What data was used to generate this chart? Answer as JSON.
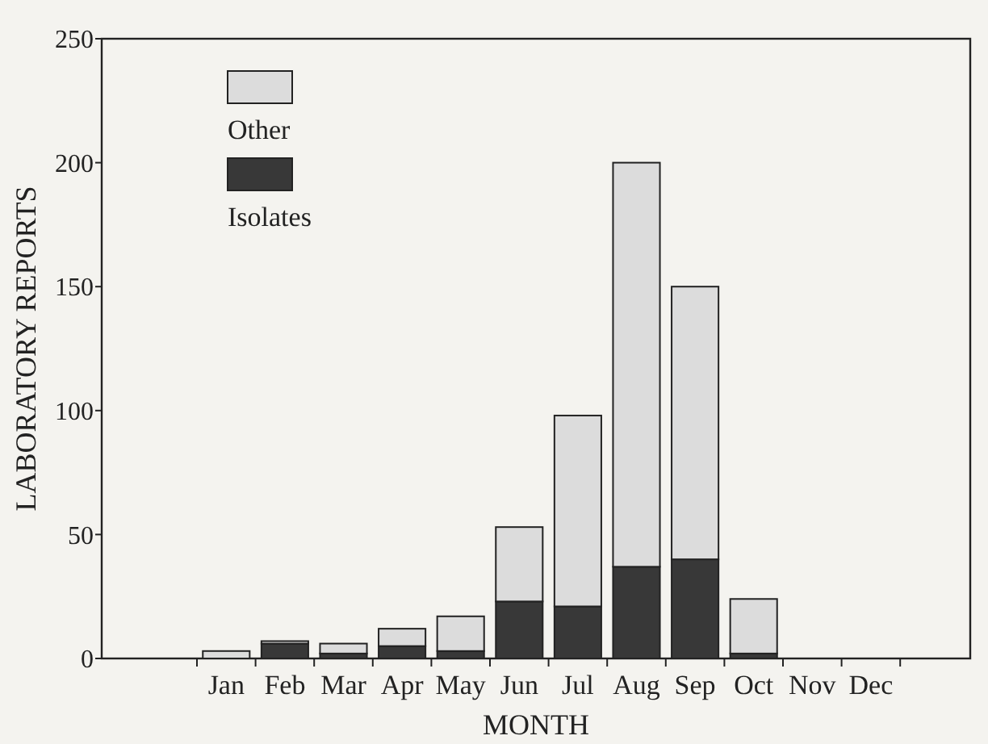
{
  "chart_data": {
    "type": "bar",
    "stacked": true,
    "xlabel": "MONTH",
    "ylabel": "LABORATORY REPORTS",
    "categories": [
      "Jan",
      "Feb",
      "Mar",
      "Apr",
      "May",
      "Jun",
      "Jul",
      "Aug",
      "Sep",
      "Oct",
      "Nov",
      "Dec"
    ],
    "series": [
      {
        "name": "Isolates",
        "color": "#383838",
        "values": [
          0,
          6,
          2,
          5,
          3,
          23,
          21,
          37,
          40,
          2,
          0,
          0
        ]
      },
      {
        "name": "Other",
        "color": "#dcdcdc",
        "values": [
          3,
          1,
          4,
          7,
          14,
          30,
          77,
          163,
          110,
          22,
          0,
          0
        ]
      }
    ],
    "ylim": [
      0,
      250
    ],
    "yticks": [
      0,
      50,
      100,
      150,
      200,
      250
    ],
    "legend": "top left",
    "grid": false
  }
}
